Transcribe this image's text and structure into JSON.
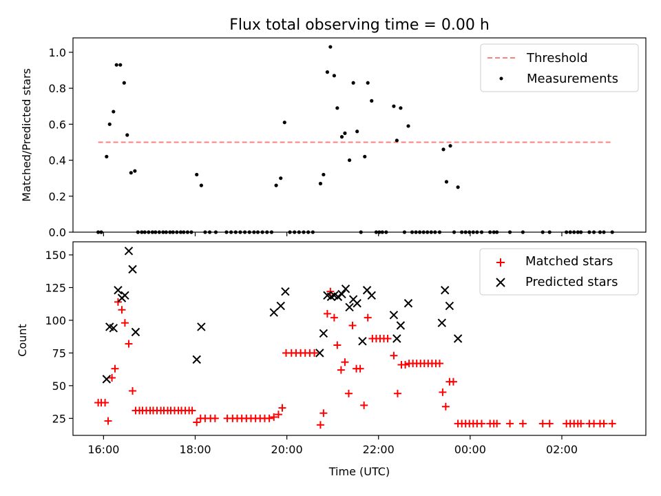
{
  "chart_data": [
    {
      "type": "scatter",
      "title": "Flux total observing time = 0.00 h",
      "xlabel": "",
      "ylabel": "Matched/Predicted stars",
      "ylim": [
        0,
        1.08
      ],
      "yticks": [
        "0.0",
        "0.2",
        "0.4",
        "0.6",
        "0.8",
        "1.0"
      ],
      "xlim": [
        "15:20",
        "03:50"
      ],
      "grid": false,
      "legend_position": "upper-right",
      "threshold": {
        "name": "Threshold",
        "value": 0.5,
        "x_range": [
          "15:53",
          "03:06"
        ],
        "color": "#ff7f7f",
        "style": "dashed"
      },
      "series": [
        {
          "name": "Measurements",
          "marker": "dot",
          "color": "#000000",
          "points": [
            [
              "15:53",
              0
            ],
            [
              "15:57",
              0
            ],
            [
              "16:04",
              0.42
            ],
            [
              "16:08",
              0.6
            ],
            [
              "16:13",
              0.67
            ],
            [
              "16:17",
              0.93
            ],
            [
              "16:22",
              0.93
            ],
            [
              "16:27",
              0.83
            ],
            [
              "16:31",
              0.54
            ],
            [
              "16:36",
              0.33
            ],
            [
              "16:41",
              0.34
            ],
            [
              "16:45",
              0
            ],
            [
              "16:50",
              0
            ],
            [
              "16:54",
              0
            ],
            [
              "16:59",
              0
            ],
            [
              "17:04",
              0
            ],
            [
              "17:08",
              0
            ],
            [
              "17:13",
              0
            ],
            [
              "17:18",
              0
            ],
            [
              "17:22",
              0
            ],
            [
              "17:27",
              0
            ],
            [
              "17:31",
              0
            ],
            [
              "17:36",
              0
            ],
            [
              "17:41",
              0
            ],
            [
              "17:45",
              0
            ],
            [
              "17:50",
              0
            ],
            [
              "17:55",
              0
            ],
            [
              "18:02",
              0.32
            ],
            [
              "18:08",
              0.26
            ],
            [
              "18:13",
              0
            ],
            [
              "18:19",
              0
            ],
            [
              "18:27",
              0
            ],
            [
              "18:41",
              0
            ],
            [
              "18:47",
              0
            ],
            [
              "18:53",
              0
            ],
            [
              "18:59",
              0
            ],
            [
              "19:05",
              0
            ],
            [
              "19:11",
              0
            ],
            [
              "19:17",
              0
            ],
            [
              "19:22",
              0
            ],
            [
              "19:28",
              0
            ],
            [
              "19:34",
              0
            ],
            [
              "19:40",
              0
            ],
            [
              "19:46",
              0.26
            ],
            [
              "19:52",
              0.3
            ],
            [
              "19:57",
              0.61
            ],
            [
              "20:04",
              0
            ],
            [
              "20:10",
              0
            ],
            [
              "20:16",
              0
            ],
            [
              "20:22",
              0
            ],
            [
              "20:28",
              0
            ],
            [
              "20:34",
              0
            ],
            [
              "20:44",
              0.27
            ],
            [
              "20:48",
              0.32
            ],
            [
              "20:53",
              0.89
            ],
            [
              "20:57",
              1.03
            ],
            [
              "21:02",
              0.87
            ],
            [
              "21:06",
              0.69
            ],
            [
              "21:12",
              0.53
            ],
            [
              "21:16",
              0.55
            ],
            [
              "21:22",
              0.4
            ],
            [
              "21:27",
              0.83
            ],
            [
              "21:32",
              0.56
            ],
            [
              "21:37",
              0
            ],
            [
              "21:42",
              0.42
            ],
            [
              "21:46",
              0.83
            ],
            [
              "21:51",
              0.73
            ],
            [
              "21:57",
              0
            ],
            [
              "22:01",
              0
            ],
            [
              "22:05",
              0
            ],
            [
              "22:10",
              0
            ],
            [
              "22:20",
              0.7
            ],
            [
              "22:24",
              0.51
            ],
            [
              "22:29",
              0.69
            ],
            [
              "22:34",
              0
            ],
            [
              "22:39",
              0.59
            ],
            [
              "22:44",
              0
            ],
            [
              "22:49",
              0
            ],
            [
              "22:54",
              0
            ],
            [
              "22:59",
              0
            ],
            [
              "23:04",
              0
            ],
            [
              "23:09",
              0
            ],
            [
              "23:14",
              0
            ],
            [
              "23:20",
              0
            ],
            [
              "23:25",
              0.46
            ],
            [
              "23:29",
              0.28
            ],
            [
              "23:34",
              0.48
            ],
            [
              "23:39",
              0
            ],
            [
              "23:44",
              0.25
            ],
            [
              "23:49",
              0
            ],
            [
              "23:54",
              0
            ],
            [
              "23:59",
              0
            ],
            [
              "00:04",
              0
            ],
            [
              "00:09",
              0
            ],
            [
              "00:15",
              0
            ],
            [
              "00:26",
              0
            ],
            [
              "00:31",
              0
            ],
            [
              "00:35",
              0
            ],
            [
              "00:52",
              0
            ],
            [
              "01:09",
              0
            ],
            [
              "01:35",
              0
            ],
            [
              "01:44",
              0
            ],
            [
              "02:06",
              0
            ],
            [
              "02:11",
              0
            ],
            [
              "02:16",
              0
            ],
            [
              "02:21",
              0
            ],
            [
              "02:25",
              0
            ],
            [
              "02:36",
              0
            ],
            [
              "02:42",
              0
            ],
            [
              "02:50",
              0
            ],
            [
              "02:55",
              0
            ],
            [
              "03:06",
              0
            ]
          ]
        }
      ]
    },
    {
      "type": "scatter",
      "title": "",
      "xlabel": "Time (UTC)",
      "ylabel": "Count",
      "ylim": [
        12,
        160
      ],
      "yticks": [
        "25",
        "50",
        "75",
        "100",
        "125",
        "150"
      ],
      "xlim": [
        "15:20",
        "03:50"
      ],
      "xticks": [
        "16:00",
        "18:00",
        "20:00",
        "22:00",
        "00:00",
        "02:00"
      ],
      "grid": false,
      "legend_position": "upper-right",
      "series": [
        {
          "name": "Matched stars",
          "marker": "plus",
          "color": "#ff0000",
          "points": [
            [
              "15:53",
              37
            ],
            [
              "15:57",
              37
            ],
            [
              "16:02",
              37
            ],
            [
              "16:06",
              23
            ],
            [
              "16:11",
              56
            ],
            [
              "16:15",
              63
            ],
            [
              "16:19",
              114
            ],
            [
              "16:24",
              108
            ],
            [
              "16:28",
              98
            ],
            [
              "16:33",
              82
            ],
            [
              "16:38",
              46
            ],
            [
              "16:42",
              31
            ],
            [
              "16:47",
              31
            ],
            [
              "16:51",
              31
            ],
            [
              "16:56",
              31
            ],
            [
              "17:01",
              31
            ],
            [
              "17:05",
              31
            ],
            [
              "17:10",
              31
            ],
            [
              "17:15",
              31
            ],
            [
              "17:19",
              31
            ],
            [
              "17:24",
              31
            ],
            [
              "17:28",
              31
            ],
            [
              "17:33",
              31
            ],
            [
              "17:38",
              31
            ],
            [
              "17:42",
              31
            ],
            [
              "17:47",
              31
            ],
            [
              "17:52",
              31
            ],
            [
              "17:56",
              31
            ],
            [
              "18:02",
              22
            ],
            [
              "18:07",
              25
            ],
            [
              "18:13",
              25
            ],
            [
              "18:20",
              25
            ],
            [
              "18:26",
              25
            ],
            [
              "18:42",
              25
            ],
            [
              "18:49",
              25
            ],
            [
              "18:55",
              25
            ],
            [
              "19:01",
              25
            ],
            [
              "19:07",
              25
            ],
            [
              "19:13",
              25
            ],
            [
              "19:19",
              25
            ],
            [
              "19:25",
              25
            ],
            [
              "19:31",
              25
            ],
            [
              "19:37",
              25
            ],
            [
              "19:43",
              26
            ],
            [
              "19:49",
              28
            ],
            [
              "19:54",
              33
            ],
            [
              "19:59",
              75
            ],
            [
              "20:06",
              75
            ],
            [
              "20:12",
              75
            ],
            [
              "20:18",
              75
            ],
            [
              "20:24",
              75
            ],
            [
              "20:30",
              75
            ],
            [
              "20:36",
              75
            ],
            [
              "20:44",
              20
            ],
            [
              "20:48",
              29
            ],
            [
              "20:53",
              105
            ],
            [
              "20:57",
              122
            ],
            [
              "21:02",
              102
            ],
            [
              "21:06",
              81
            ],
            [
              "21:11",
              62
            ],
            [
              "21:16",
              68
            ],
            [
              "21:21",
              44
            ],
            [
              "21:26",
              96
            ],
            [
              "21:31",
              63
            ],
            [
              "21:36",
              63
            ],
            [
              "21:41",
              35
            ],
            [
              "21:46",
              102
            ],
            [
              "21:52",
              86
            ],
            [
              "21:57",
              86
            ],
            [
              "22:02",
              86
            ],
            [
              "22:07",
              86
            ],
            [
              "22:12",
              86
            ],
            [
              "22:20",
              73
            ],
            [
              "22:25",
              44
            ],
            [
              "22:30",
              66
            ],
            [
              "22:35",
              66
            ],
            [
              "22:40",
              67
            ],
            [
              "22:45",
              67
            ],
            [
              "22:50",
              67
            ],
            [
              "22:55",
              67
            ],
            [
              "23:00",
              67
            ],
            [
              "23:05",
              67
            ],
            [
              "23:10",
              67
            ],
            [
              "23:15",
              67
            ],
            [
              "23:20",
              67
            ],
            [
              "23:24",
              45
            ],
            [
              "23:28",
              34
            ],
            [
              "23:33",
              53
            ],
            [
              "23:38",
              53
            ],
            [
              "23:44",
              21
            ],
            [
              "23:49",
              21
            ],
            [
              "23:54",
              21
            ],
            [
              "23:59",
              21
            ],
            [
              "00:04",
              21
            ],
            [
              "00:09",
              21
            ],
            [
              "00:15",
              21
            ],
            [
              "00:26",
              21
            ],
            [
              "00:31",
              21
            ],
            [
              "00:35",
              21
            ],
            [
              "00:52",
              21
            ],
            [
              "01:09",
              21
            ],
            [
              "01:35",
              21
            ],
            [
              "01:44",
              21
            ],
            [
              "02:06",
              21
            ],
            [
              "02:11",
              21
            ],
            [
              "02:16",
              21
            ],
            [
              "02:21",
              21
            ],
            [
              "02:25",
              21
            ],
            [
              "02:36",
              21
            ],
            [
              "02:42",
              21
            ],
            [
              "02:50",
              21
            ],
            [
              "02:55",
              21
            ],
            [
              "03:06",
              21
            ]
          ]
        },
        {
          "name": "Predicted stars",
          "marker": "x",
          "color": "#000000",
          "points": [
            [
              "16:04",
              55
            ],
            [
              "16:08",
              95
            ],
            [
              "16:13",
              94
            ],
            [
              "16:19",
              123
            ],
            [
              "16:24",
              117
            ],
            [
              "16:28",
              119
            ],
            [
              "16:33",
              153
            ],
            [
              "16:38",
              139
            ],
            [
              "16:42",
              91
            ],
            [
              "18:02",
              70
            ],
            [
              "18:08",
              95
            ],
            [
              "19:43",
              106
            ],
            [
              "19:52",
              111
            ],
            [
              "19:58",
              122
            ],
            [
              "20:43",
              75
            ],
            [
              "20:48",
              90
            ],
            [
              "20:53",
              119
            ],
            [
              "20:58",
              118
            ],
            [
              "21:02",
              119
            ],
            [
              "21:07",
              118
            ],
            [
              "21:12",
              120
            ],
            [
              "21:17",
              124
            ],
            [
              "21:22",
              110
            ],
            [
              "21:27",
              116
            ],
            [
              "21:32",
              113
            ],
            [
              "21:39",
              84
            ],
            [
              "21:45",
              123
            ],
            [
              "21:51",
              119
            ],
            [
              "22:20",
              104
            ],
            [
              "22:24",
              86
            ],
            [
              "22:29",
              96
            ],
            [
              "22:39",
              113
            ],
            [
              "23:23",
              98
            ],
            [
              "23:27",
              123
            ],
            [
              "23:33",
              111
            ],
            [
              "23:44",
              86
            ]
          ]
        }
      ]
    }
  ],
  "legend_top": {
    "threshold_label": "Threshold",
    "measurements_label": "Measurements"
  },
  "legend_bottom": {
    "matched_label": "Matched stars",
    "predicted_label": "Predicted stars"
  }
}
